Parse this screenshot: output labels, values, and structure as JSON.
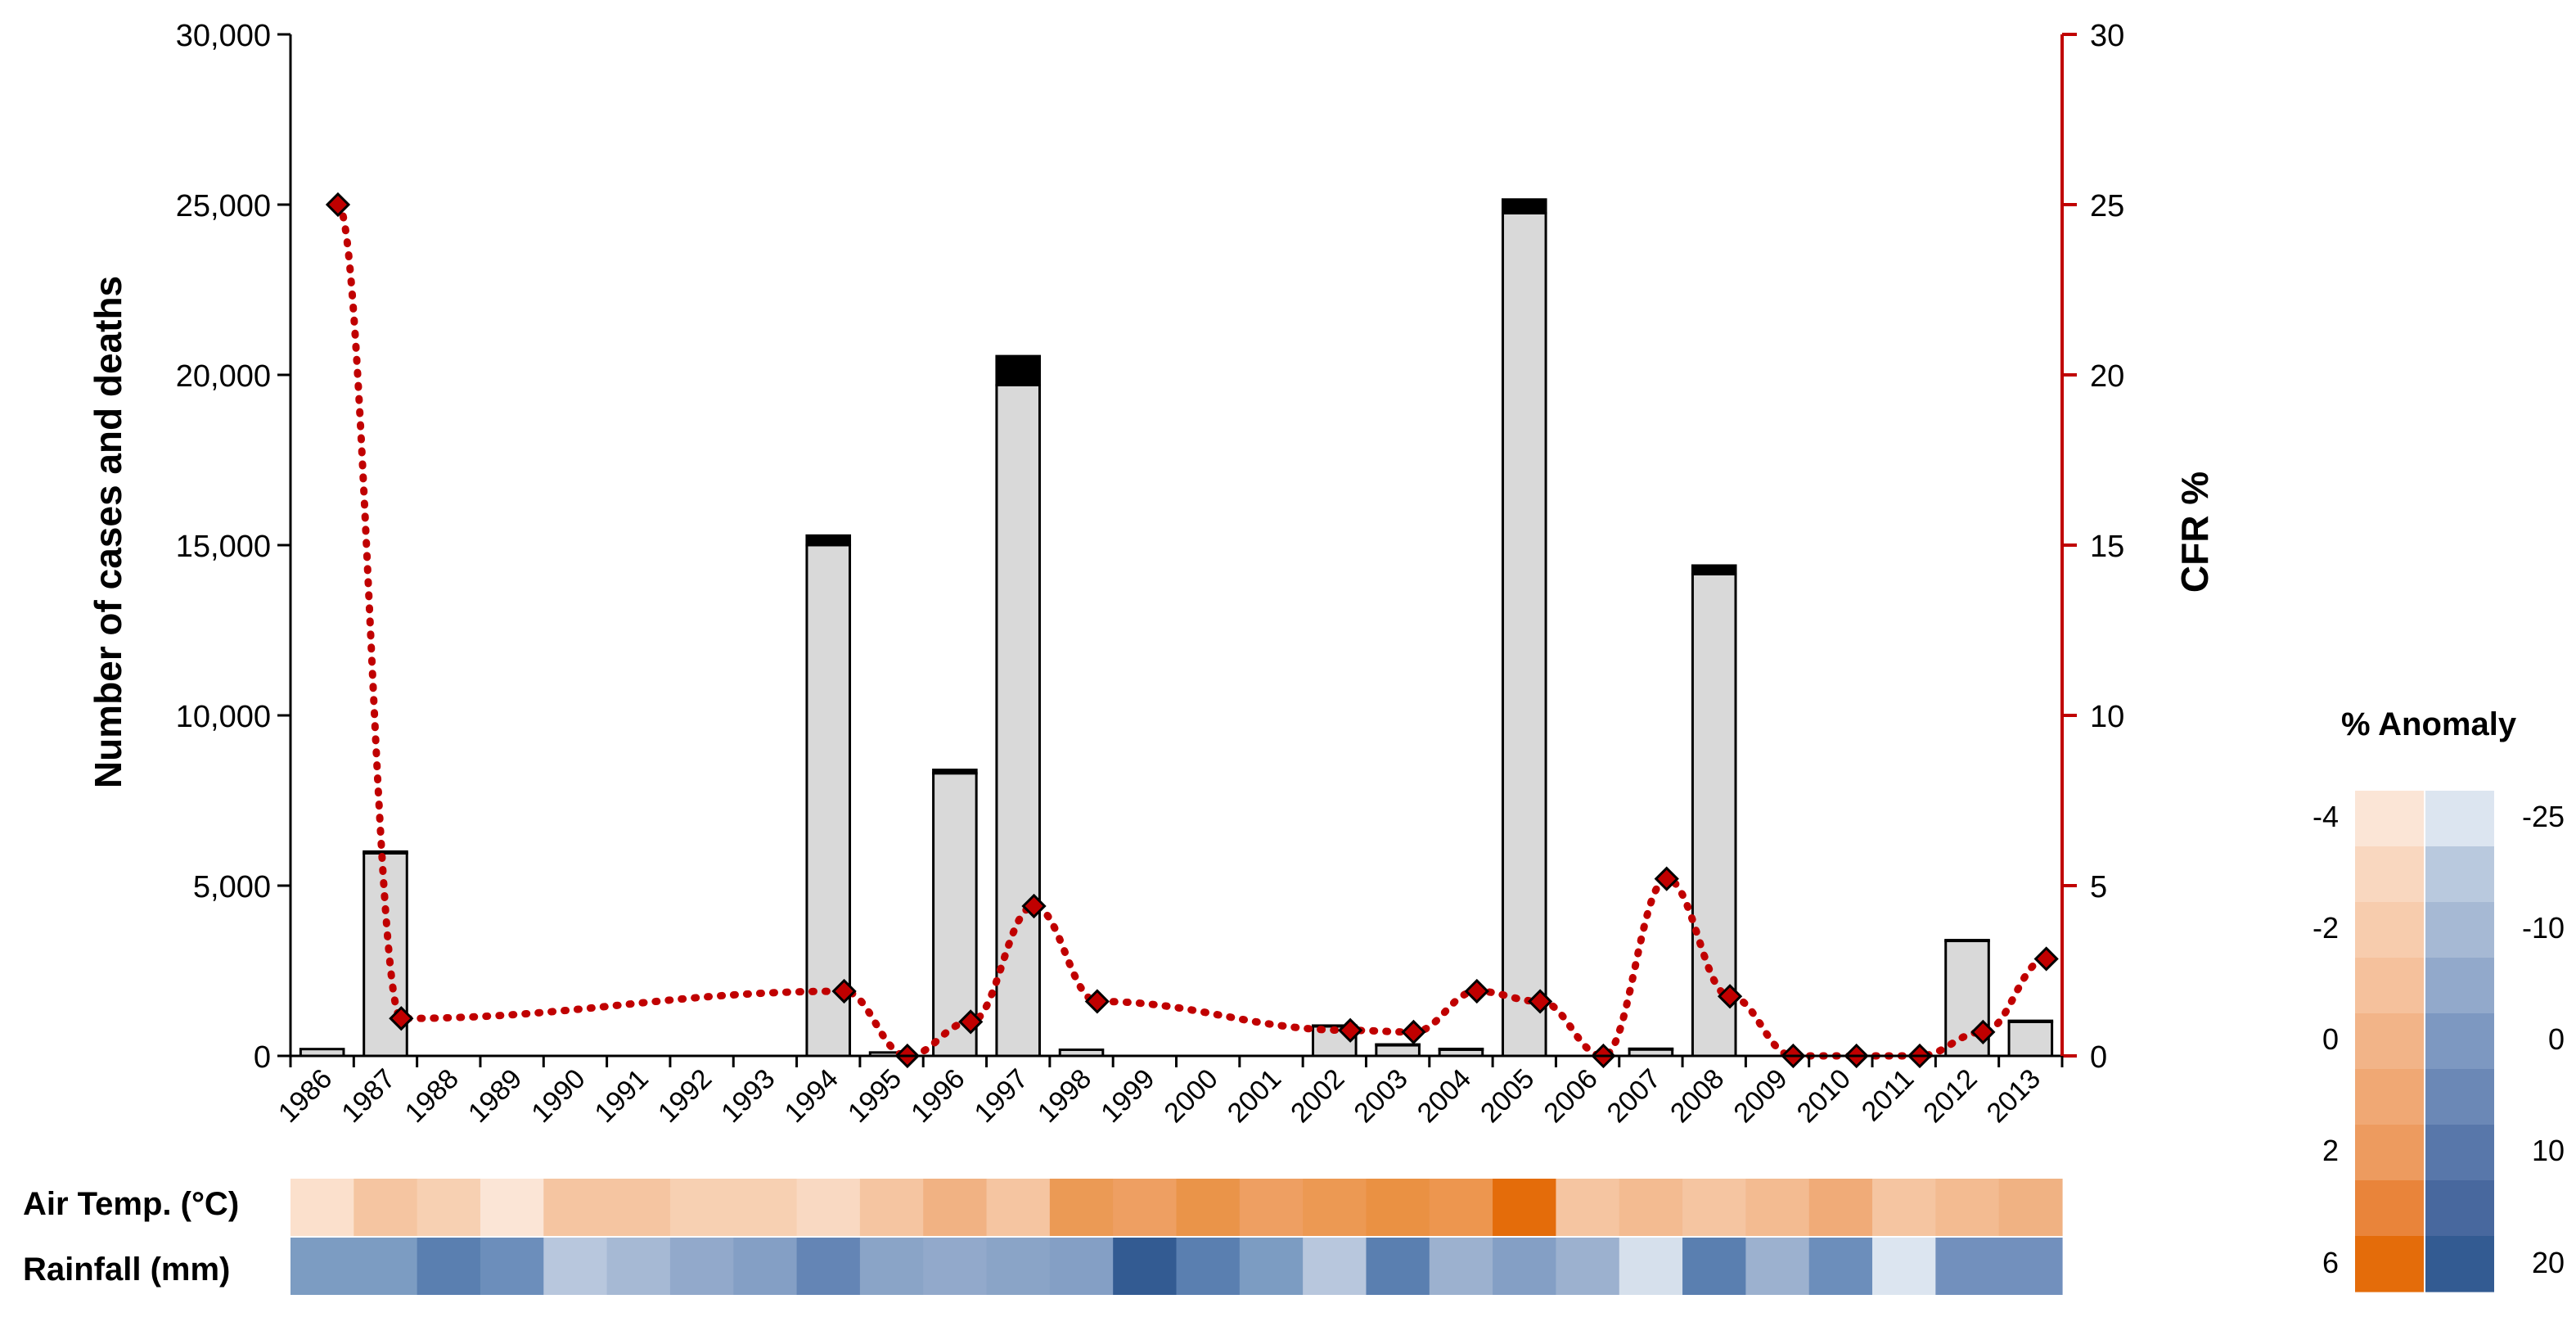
{
  "chart_data": {
    "type": "bar",
    "categories": [
      "1986",
      "1987",
      "1988",
      "1989",
      "1990",
      "1991",
      "1992",
      "1993",
      "1994",
      "1995",
      "1996",
      "1997",
      "1998",
      "1999",
      "2000",
      "2001",
      "2002",
      "2003",
      "2004",
      "2005",
      "2006",
      "2007",
      "2008",
      "2009",
      "2010",
      "2011",
      "2012",
      "2013"
    ],
    "ylabel": "Number of cases and deaths",
    "y2label": "CFR %",
    "ylim": [
      0,
      30000
    ],
    "y2lim": [
      0,
      30
    ],
    "yticks": [
      "0",
      "5,000",
      "10,000",
      "15,000",
      "20,000",
      "25,000",
      "30,000"
    ],
    "y2ticks": [
      "0",
      "5",
      "10",
      "15",
      "20",
      "25",
      "30"
    ],
    "series": [
      {
        "kind": "bar-stack-bottom",
        "color": "#d9d9d9",
        "values": [
          200,
          5950,
          0,
          0,
          0,
          0,
          0,
          0,
          15000,
          100,
          8300,
          19700,
          180,
          0,
          0,
          0,
          880,
          330,
          200,
          24750,
          0,
          200,
          14150,
          0,
          0,
          0,
          3380,
          1000
        ]
      },
      {
        "kind": "bar-stack-top",
        "color": "#000000",
        "values": [
          0,
          50,
          0,
          0,
          0,
          0,
          0,
          0,
          280,
          0,
          100,
          850,
          0,
          0,
          0,
          0,
          10,
          5,
          5,
          400,
          0,
          10,
          250,
          0,
          0,
          0,
          20,
          30
        ]
      },
      {
        "kind": "line-dotted",
        "axis": "right",
        "color": "#c00000",
        "values": [
          25,
          1.1,
          null,
          null,
          null,
          null,
          null,
          null,
          1.9,
          0,
          1.0,
          4.4,
          1.6,
          null,
          null,
          null,
          0.75,
          0.7,
          1.9,
          1.6,
          0,
          5.2,
          1.75,
          0,
          0,
          0,
          0.7,
          2.85
        ]
      }
    ],
    "heatmap": {
      "rows": [
        {
          "label": "Air Temp. (°C)",
          "colors": [
            "#fbe0cc",
            "#f5c5a1",
            "#f7d0b2",
            "#fbe5d6",
            "#f5c5a1",
            "#f5c5a1",
            "#f7d0b2",
            "#f7d0b2",
            "#f9d9c2",
            "#f5c5a1",
            "#f1b283",
            "#f5c5a1",
            "#eb9a55",
            "#ee9f62",
            "#ea9449",
            "#ee9f62",
            "#ec9953",
            "#ea9143",
            "#ed964f",
            "#e46c0a",
            "#f5c5a1",
            "#f3bb91",
            "#f5c5a1",
            "#f3bb91",
            "#f0ab78",
            "#f5c5a1",
            "#f3bb91",
            "#f0b283"
          ]
        },
        {
          "label": "Rainfall (mm)",
          "colors": [
            "#7c9cc2",
            "#7c9cc2",
            "#5a7fb0",
            "#6c8ebb",
            "#b8c7dd",
            "#a6b9d4",
            "#92a9cb",
            "#849fc5",
            "#6485b5",
            "#8aa4c7",
            "#92a9cb",
            "#8aa4c7",
            "#849fc5",
            "#335b92",
            "#5a7fb0",
            "#7c9cc2",
            "#b8c7dd",
            "#5a7fb0",
            "#9cb1cf",
            "#849fc5",
            "#9cb1cf",
            "#d6e0ec",
            "#5a7fb0",
            "#9cb1cf",
            "#6c8ebb",
            "#dce5f0",
            "#7290bd",
            "#7290bd"
          ]
        }
      ]
    },
    "legend": {
      "title": "% Anomaly",
      "temp_labels": [
        "-4",
        "-2",
        "0",
        "2",
        "6"
      ],
      "rain_labels": [
        "-25",
        "-10",
        "0",
        "10",
        "20"
      ],
      "temp_colors": [
        "#fbe5d6",
        "#f9d7bf",
        "#f7ccad",
        "#f5c19c",
        "#f2b488",
        "#f0a874",
        "#ed9b5f",
        "#e9843a",
        "#e46c0a"
      ],
      "rain_colors": [
        "#dce5f0",
        "#b9c9de",
        "#a6b9d4",
        "#92a9cb",
        "#7d98c1",
        "#6b88b6",
        "#5877aa",
        "#48689e",
        "#335b92"
      ]
    }
  }
}
